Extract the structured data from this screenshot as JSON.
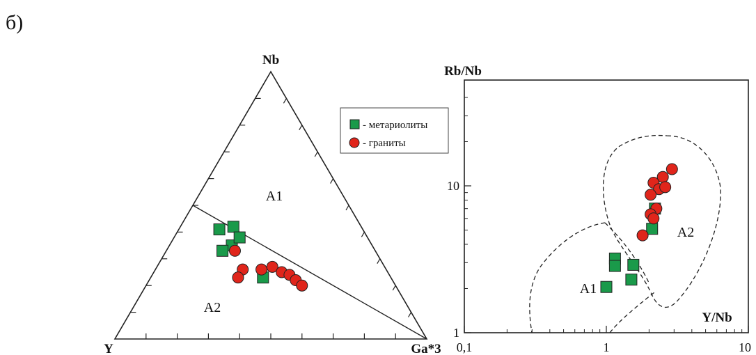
{
  "figure_label": "б)",
  "legend": [
    {
      "marker": "square",
      "label": "- метариолиты",
      "color": "#1a9a4a"
    },
    {
      "marker": "circle",
      "label": "- граниты",
      "color": "#e0251b"
    }
  ],
  "colors": {
    "square": "#1a9a4a",
    "circle": "#e0251b",
    "stroke": "#222222"
  },
  "chart_data": [
    {
      "type": "scatter",
      "subtype": "ternary",
      "apex_labels": {
        "top": "Nb",
        "left": "Y",
        "right": "Ga*3"
      },
      "field_labels": [
        "A1",
        "A2"
      ],
      "divider_line": "from 50% Nb on the Nb–Y edge to the Ga*3 apex",
      "series": [
        {
          "name": "метариолиты",
          "marker": "square",
          "points": [
            {
              "nb": 0.41,
              "y": 0.46,
              "ga3": 0.13
            },
            {
              "nb": 0.42,
              "y": 0.41,
              "ga3": 0.17
            },
            {
              "nb": 0.35,
              "y": 0.45,
              "ga3": 0.2
            },
            {
              "nb": 0.38,
              "y": 0.41,
              "ga3": 0.21
            },
            {
              "nb": 0.33,
              "y": 0.49,
              "ga3": 0.18
            },
            {
              "nb": 0.23,
              "y": 0.41,
              "ga3": 0.36
            }
          ]
        },
        {
          "name": "граниты",
          "marker": "circle",
          "points": [
            {
              "nb": 0.33,
              "y": 0.45,
              "ga3": 0.22
            },
            {
              "nb": 0.26,
              "y": 0.46,
              "ga3": 0.28
            },
            {
              "nb": 0.26,
              "y": 0.4,
              "ga3": 0.34
            },
            {
              "nb": 0.27,
              "y": 0.36,
              "ga3": 0.37
            },
            {
              "nb": 0.25,
              "y": 0.34,
              "ga3": 0.41
            },
            {
              "nb": 0.23,
              "y": 0.49,
              "ga3": 0.28
            },
            {
              "nb": 0.24,
              "y": 0.32,
              "ga3": 0.44
            },
            {
              "nb": 0.22,
              "y": 0.31,
              "ga3": 0.47
            },
            {
              "nb": 0.2,
              "y": 0.3,
              "ga3": 0.5
            }
          ]
        }
      ]
    },
    {
      "type": "scatter",
      "xlabel": "Y/Nb",
      "ylabel": "Rb/Nb",
      "xscale": "log",
      "yscale": "log",
      "xlim": [
        0.1,
        10
      ],
      "ylim": [
        1,
        50
      ],
      "x_ticks": [
        "0,1",
        "1",
        "10"
      ],
      "y_ticks": [
        "1",
        "10"
      ],
      "field_labels": [
        "A1",
        "A2"
      ],
      "series": [
        {
          "name": "метариолиты",
          "marker": "square",
          "points": [
            [
              2.2,
              7.0
            ],
            [
              2.1,
              5.1
            ],
            [
              1.15,
              3.2
            ],
            [
              1.15,
              2.85
            ],
            [
              1.55,
              2.9
            ],
            [
              1.5,
              2.3
            ],
            [
              1.0,
              2.05
            ]
          ]
        },
        {
          "name": "граниты",
          "marker": "circle",
          "points": [
            [
              2.9,
              13.0
            ],
            [
              2.5,
              11.5
            ],
            [
              2.15,
              10.5
            ],
            [
              2.35,
              9.5
            ],
            [
              2.6,
              9.8
            ],
            [
              2.05,
              8.7
            ],
            [
              2.25,
              7.0
            ],
            [
              2.05,
              6.4
            ],
            [
              2.15,
              6.0
            ],
            [
              1.8,
              4.6
            ]
          ]
        }
      ]
    }
  ]
}
